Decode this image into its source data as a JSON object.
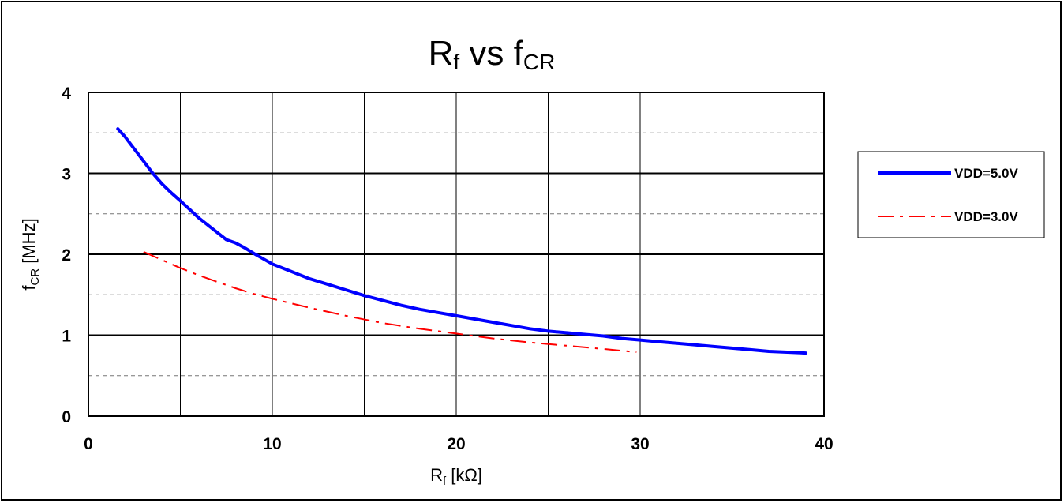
{
  "chart_data": {
    "type": "line",
    "title": {
      "main": "R",
      "main_sub": "f",
      "middle": " vs f",
      "middle_sub": "CR"
    },
    "xlabel": {
      "main": "R",
      "sub": "f",
      "rest": " [kΩ]"
    },
    "ylabel": {
      "main": "f",
      "sub": "CR",
      "rest": " [MHz]"
    },
    "xlim": [
      0,
      40
    ],
    "ylim": [
      0,
      4
    ],
    "xticks": [
      0,
      10,
      20,
      30,
      40
    ],
    "yticks": [
      0,
      1,
      2,
      3,
      4
    ],
    "x_minor_grid": [
      5,
      15,
      25,
      35
    ],
    "y_minor_grid": [
      0.5,
      1.5,
      2.5,
      3.5
    ],
    "grid": true,
    "legend_position": "right",
    "series": [
      {
        "name": "VDD=5.0V",
        "color": "#0000ff",
        "style": "solid",
        "x": [
          1.6,
          2,
          2.5,
          3,
          3.5,
          4,
          4.5,
          5,
          6,
          7,
          7.5,
          8,
          8.5,
          9,
          10,
          11,
          12,
          13,
          14,
          15,
          16,
          17,
          18,
          19,
          20,
          21,
          22,
          23,
          24,
          25,
          26,
          27,
          28,
          29,
          30,
          31,
          32,
          33,
          34,
          35,
          36,
          37,
          38,
          39
        ],
        "y": [
          3.55,
          3.45,
          3.3,
          3.15,
          3.0,
          2.87,
          2.76,
          2.66,
          2.45,
          2.27,
          2.18,
          2.14,
          2.08,
          2.01,
          1.88,
          1.79,
          1.7,
          1.63,
          1.56,
          1.49,
          1.43,
          1.37,
          1.32,
          1.28,
          1.24,
          1.2,
          1.16,
          1.12,
          1.08,
          1.05,
          1.03,
          1.01,
          0.99,
          0.96,
          0.94,
          0.92,
          0.9,
          0.88,
          0.86,
          0.84,
          0.82,
          0.8,
          0.79,
          0.78
        ]
      },
      {
        "name": "VDD=3.0V",
        "color": "#ff0000",
        "style": "dash-dot",
        "x": [
          3,
          4,
          5,
          6,
          7,
          8,
          9,
          10,
          12,
          14,
          16,
          18,
          20,
          22,
          24,
          26,
          28,
          29.8
        ],
        "y": [
          2.03,
          1.93,
          1.83,
          1.74,
          1.66,
          1.58,
          1.51,
          1.45,
          1.34,
          1.24,
          1.15,
          1.08,
          1.02,
          0.96,
          0.91,
          0.87,
          0.83,
          0.79
        ]
      }
    ]
  }
}
